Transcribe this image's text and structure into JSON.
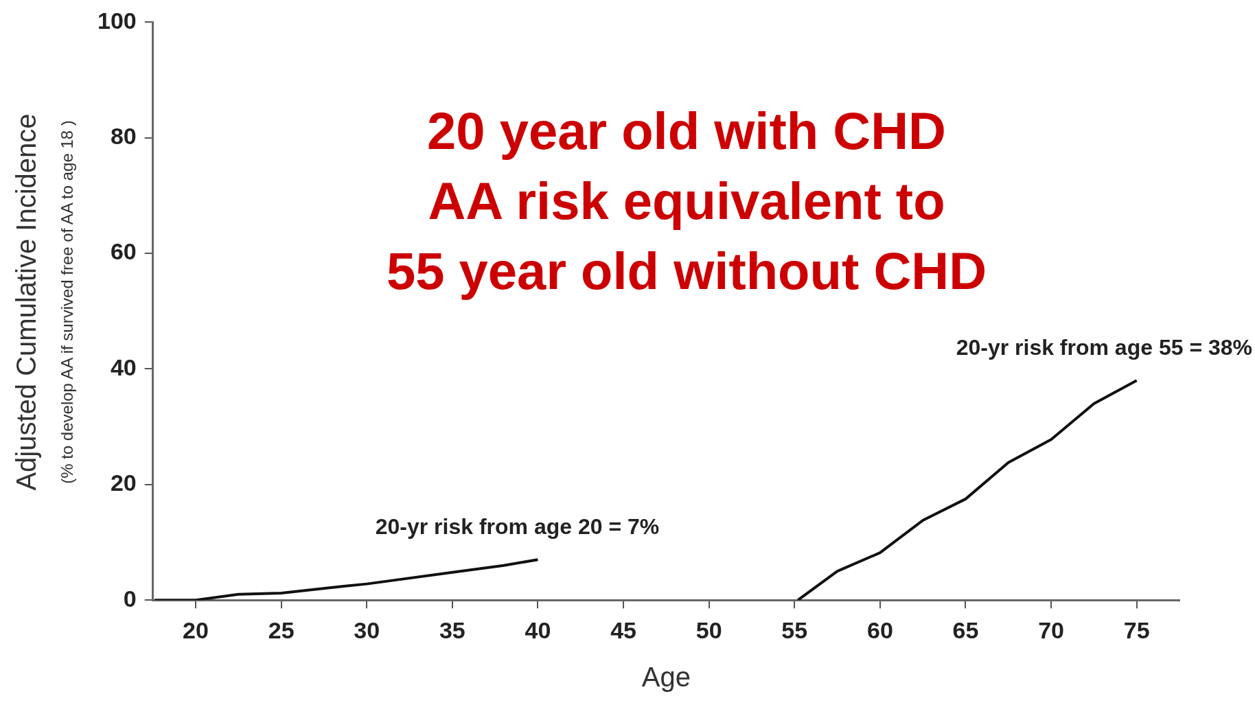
{
  "chart_data": {
    "type": "line",
    "title": "20 year old with CHD\nAA risk equivalent to\n55 year old without CHD",
    "xlabel": "Age",
    "ylabel": "Adjusted Cumulative Incidence\n(% to develop AA if survived free of AA to age 18 )",
    "series": [
      {
        "color": "#111111",
        "x": [
          17.6,
          20,
          22.5,
          25,
          28,
          30,
          35,
          38,
          40
        ],
        "values": [
          0,
          0,
          1,
          1.2,
          2.2,
          2.8,
          4.8,
          6,
          7
        ]
      },
      {
        "color": "#111111",
        "x": [
          55.2,
          57.5,
          60,
          62.5,
          65,
          67.5,
          70,
          72.5,
          75
        ],
        "values": [
          0,
          5,
          8.2,
          13.8,
          17.5,
          23.8,
          27.8,
          34,
          38
        ]
      }
    ],
    "annotations": [
      {
        "text": "20-yr risk from age 20 = 7%",
        "x": 40,
        "y": 7
      },
      {
        "text": "20-yr risk from age 55 = 38%",
        "x": 75,
        "y": 38
      }
    ],
    "xlim": [
      17.5,
      77.5
    ],
    "xticks": [
      20,
      25,
      30,
      35,
      40,
      45,
      50,
      55,
      60,
      65,
      70,
      75
    ],
    "ylim": [
      0,
      100
    ],
    "yticks": [
      0,
      20,
      40,
      60,
      80,
      100
    ],
    "grid": false,
    "legend": false,
    "marker": "none",
    "line_style": "solid"
  }
}
